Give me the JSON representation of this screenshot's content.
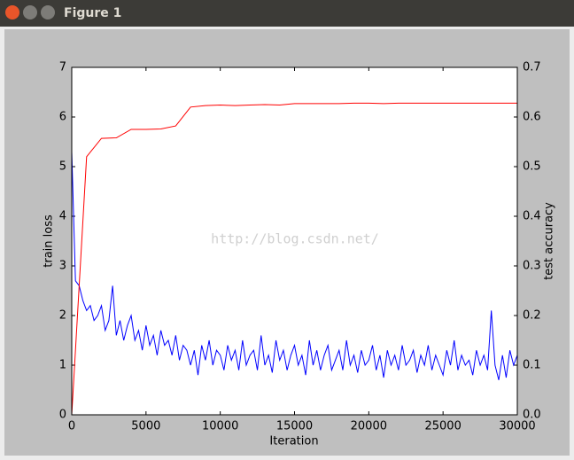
{
  "window_title": "Figure 1",
  "chart_data": {
    "type": "line",
    "watermark": "http://blog.csdn.net/",
    "xlabel": "Iteration",
    "ylabel": "train loss",
    "y2label": "test accuracy",
    "xlim": [
      0,
      30000
    ],
    "xticks": [
      0,
      5000,
      10000,
      15000,
      20000,
      25000,
      30000
    ],
    "ylim": [
      0,
      7
    ],
    "yticks": [
      0,
      1,
      2,
      3,
      4,
      5,
      6,
      7
    ],
    "y2lim": [
      0,
      0.7
    ],
    "y2ticks": [
      {
        "value": 0,
        "label": "0.0"
      },
      0.1,
      0.2,
      0.3,
      0.4,
      0.5,
      0.6,
      0.7
    ],
    "series": [
      {
        "name": "train loss",
        "color": "#0000ff",
        "x": [
          0,
          250,
          500,
          750,
          1000,
          1250,
          1500,
          1750,
          2000,
          2250,
          2500,
          2750,
          3000,
          3250,
          3500,
          3750,
          4000,
          4250,
          4500,
          4750,
          5000,
          5250,
          5500,
          5750,
          6000,
          6250,
          6500,
          6750,
          7000,
          7250,
          7500,
          7750,
          8000,
          8250,
          8500,
          8750,
          9000,
          9250,
          9500,
          9750,
          10000,
          10250,
          10500,
          10750,
          11000,
          11250,
          11500,
          11750,
          12000,
          12250,
          12500,
          12750,
          13000,
          13250,
          13500,
          13750,
          14000,
          14250,
          14500,
          14750,
          15000,
          15250,
          15500,
          15750,
          16000,
          16250,
          16500,
          16750,
          17000,
          17250,
          17500,
          17750,
          18000,
          18250,
          18500,
          18750,
          19000,
          19250,
          19500,
          19750,
          20000,
          20250,
          20500,
          20750,
          21000,
          21250,
          21500,
          21750,
          22000,
          22250,
          22500,
          22750,
          23000,
          23250,
          23500,
          23750,
          24000,
          24250,
          24500,
          24750,
          25000,
          25250,
          25500,
          25750,
          26000,
          26250,
          26500,
          26750,
          27000,
          27250,
          27500,
          27750,
          28000,
          28250,
          28500,
          28750,
          29000,
          29250,
          29500,
          29750,
          30000
        ],
        "values": [
          5.3,
          2.7,
          2.6,
          2.3,
          2.1,
          2.2,
          1.9,
          2.0,
          2.2,
          1.7,
          1.9,
          2.6,
          1.6,
          1.9,
          1.5,
          1.8,
          2.0,
          1.5,
          1.7,
          1.3,
          1.8,
          1.4,
          1.6,
          1.2,
          1.7,
          1.4,
          1.5,
          1.2,
          1.6,
          1.1,
          1.4,
          1.3,
          1.0,
          1.3,
          0.8,
          1.4,
          1.1,
          1.5,
          1.0,
          1.3,
          1.2,
          0.9,
          1.4,
          1.1,
          1.3,
          0.9,
          1.5,
          1.0,
          1.2,
          1.3,
          0.9,
          1.6,
          1.0,
          1.2,
          0.85,
          1.5,
          1.1,
          1.3,
          0.9,
          1.2,
          1.4,
          1.0,
          1.2,
          0.8,
          1.5,
          1.0,
          1.3,
          0.9,
          1.2,
          1.4,
          0.9,
          1.1,
          1.3,
          0.9,
          1.5,
          1.0,
          1.2,
          0.85,
          1.3,
          1.0,
          1.1,
          1.4,
          0.9,
          1.2,
          0.75,
          1.3,
          1.0,
          1.2,
          0.9,
          1.4,
          1.0,
          1.1,
          1.3,
          0.85,
          1.2,
          1.0,
          1.4,
          0.9,
          1.2,
          1.0,
          0.8,
          1.3,
          1.0,
          1.5,
          0.9,
          1.2,
          1.0,
          1.1,
          0.8,
          1.3,
          1.0,
          1.2,
          0.9,
          2.1,
          1.0,
          0.7,
          1.2,
          0.75,
          1.3,
          1.0,
          1.2
        ]
      },
      {
        "name": "test accuracy",
        "color": "#ff0000",
        "axis": "y2",
        "x": [
          0,
          1000,
          2000,
          3000,
          4000,
          5000,
          6000,
          7000,
          8000,
          9000,
          10000,
          11000,
          12000,
          13000,
          14000,
          15000,
          16000,
          17000,
          18000,
          19000,
          20000,
          21000,
          22000,
          23000,
          24000,
          25000,
          26000,
          27000,
          28000,
          29000,
          30000
        ],
        "values": [
          0.0,
          0.52,
          0.557,
          0.558,
          0.575,
          0.575,
          0.576,
          0.582,
          0.62,
          0.623,
          0.624,
          0.623,
          0.624,
          0.625,
          0.624,
          0.627,
          0.627,
          0.627,
          0.627,
          0.628,
          0.628,
          0.627,
          0.628,
          0.628,
          0.628,
          0.628,
          0.628,
          0.628,
          0.628,
          0.628,
          0.628
        ]
      }
    ]
  }
}
